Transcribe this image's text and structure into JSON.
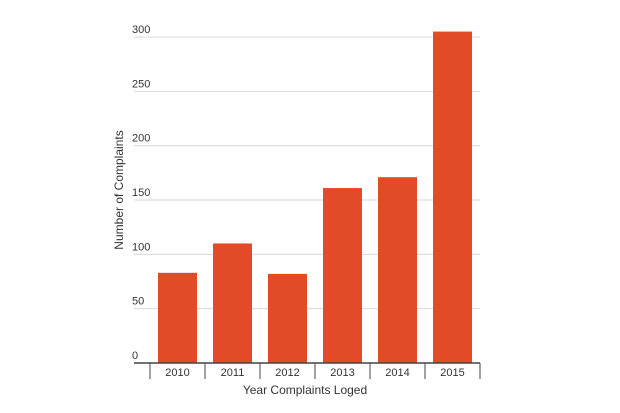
{
  "chart_data": {
    "type": "bar",
    "title": "",
    "xlabel": "Year Complaints Loged",
    "ylabel": "Number of Complaints",
    "categories": [
      "2010",
      "2011",
      "2012",
      "2013",
      "2014",
      "2015"
    ],
    "values": [
      83,
      110,
      82,
      161,
      171,
      305
    ],
    "ylim": [
      0,
      300
    ],
    "yticks": [
      "0",
      "50",
      "100",
      "150",
      "200",
      "250",
      "300"
    ],
    "grid": true,
    "legend": "none",
    "colors": {
      "bar": "#e34a27",
      "grid": "#d8d8d8",
      "axis": "#444444"
    }
  }
}
